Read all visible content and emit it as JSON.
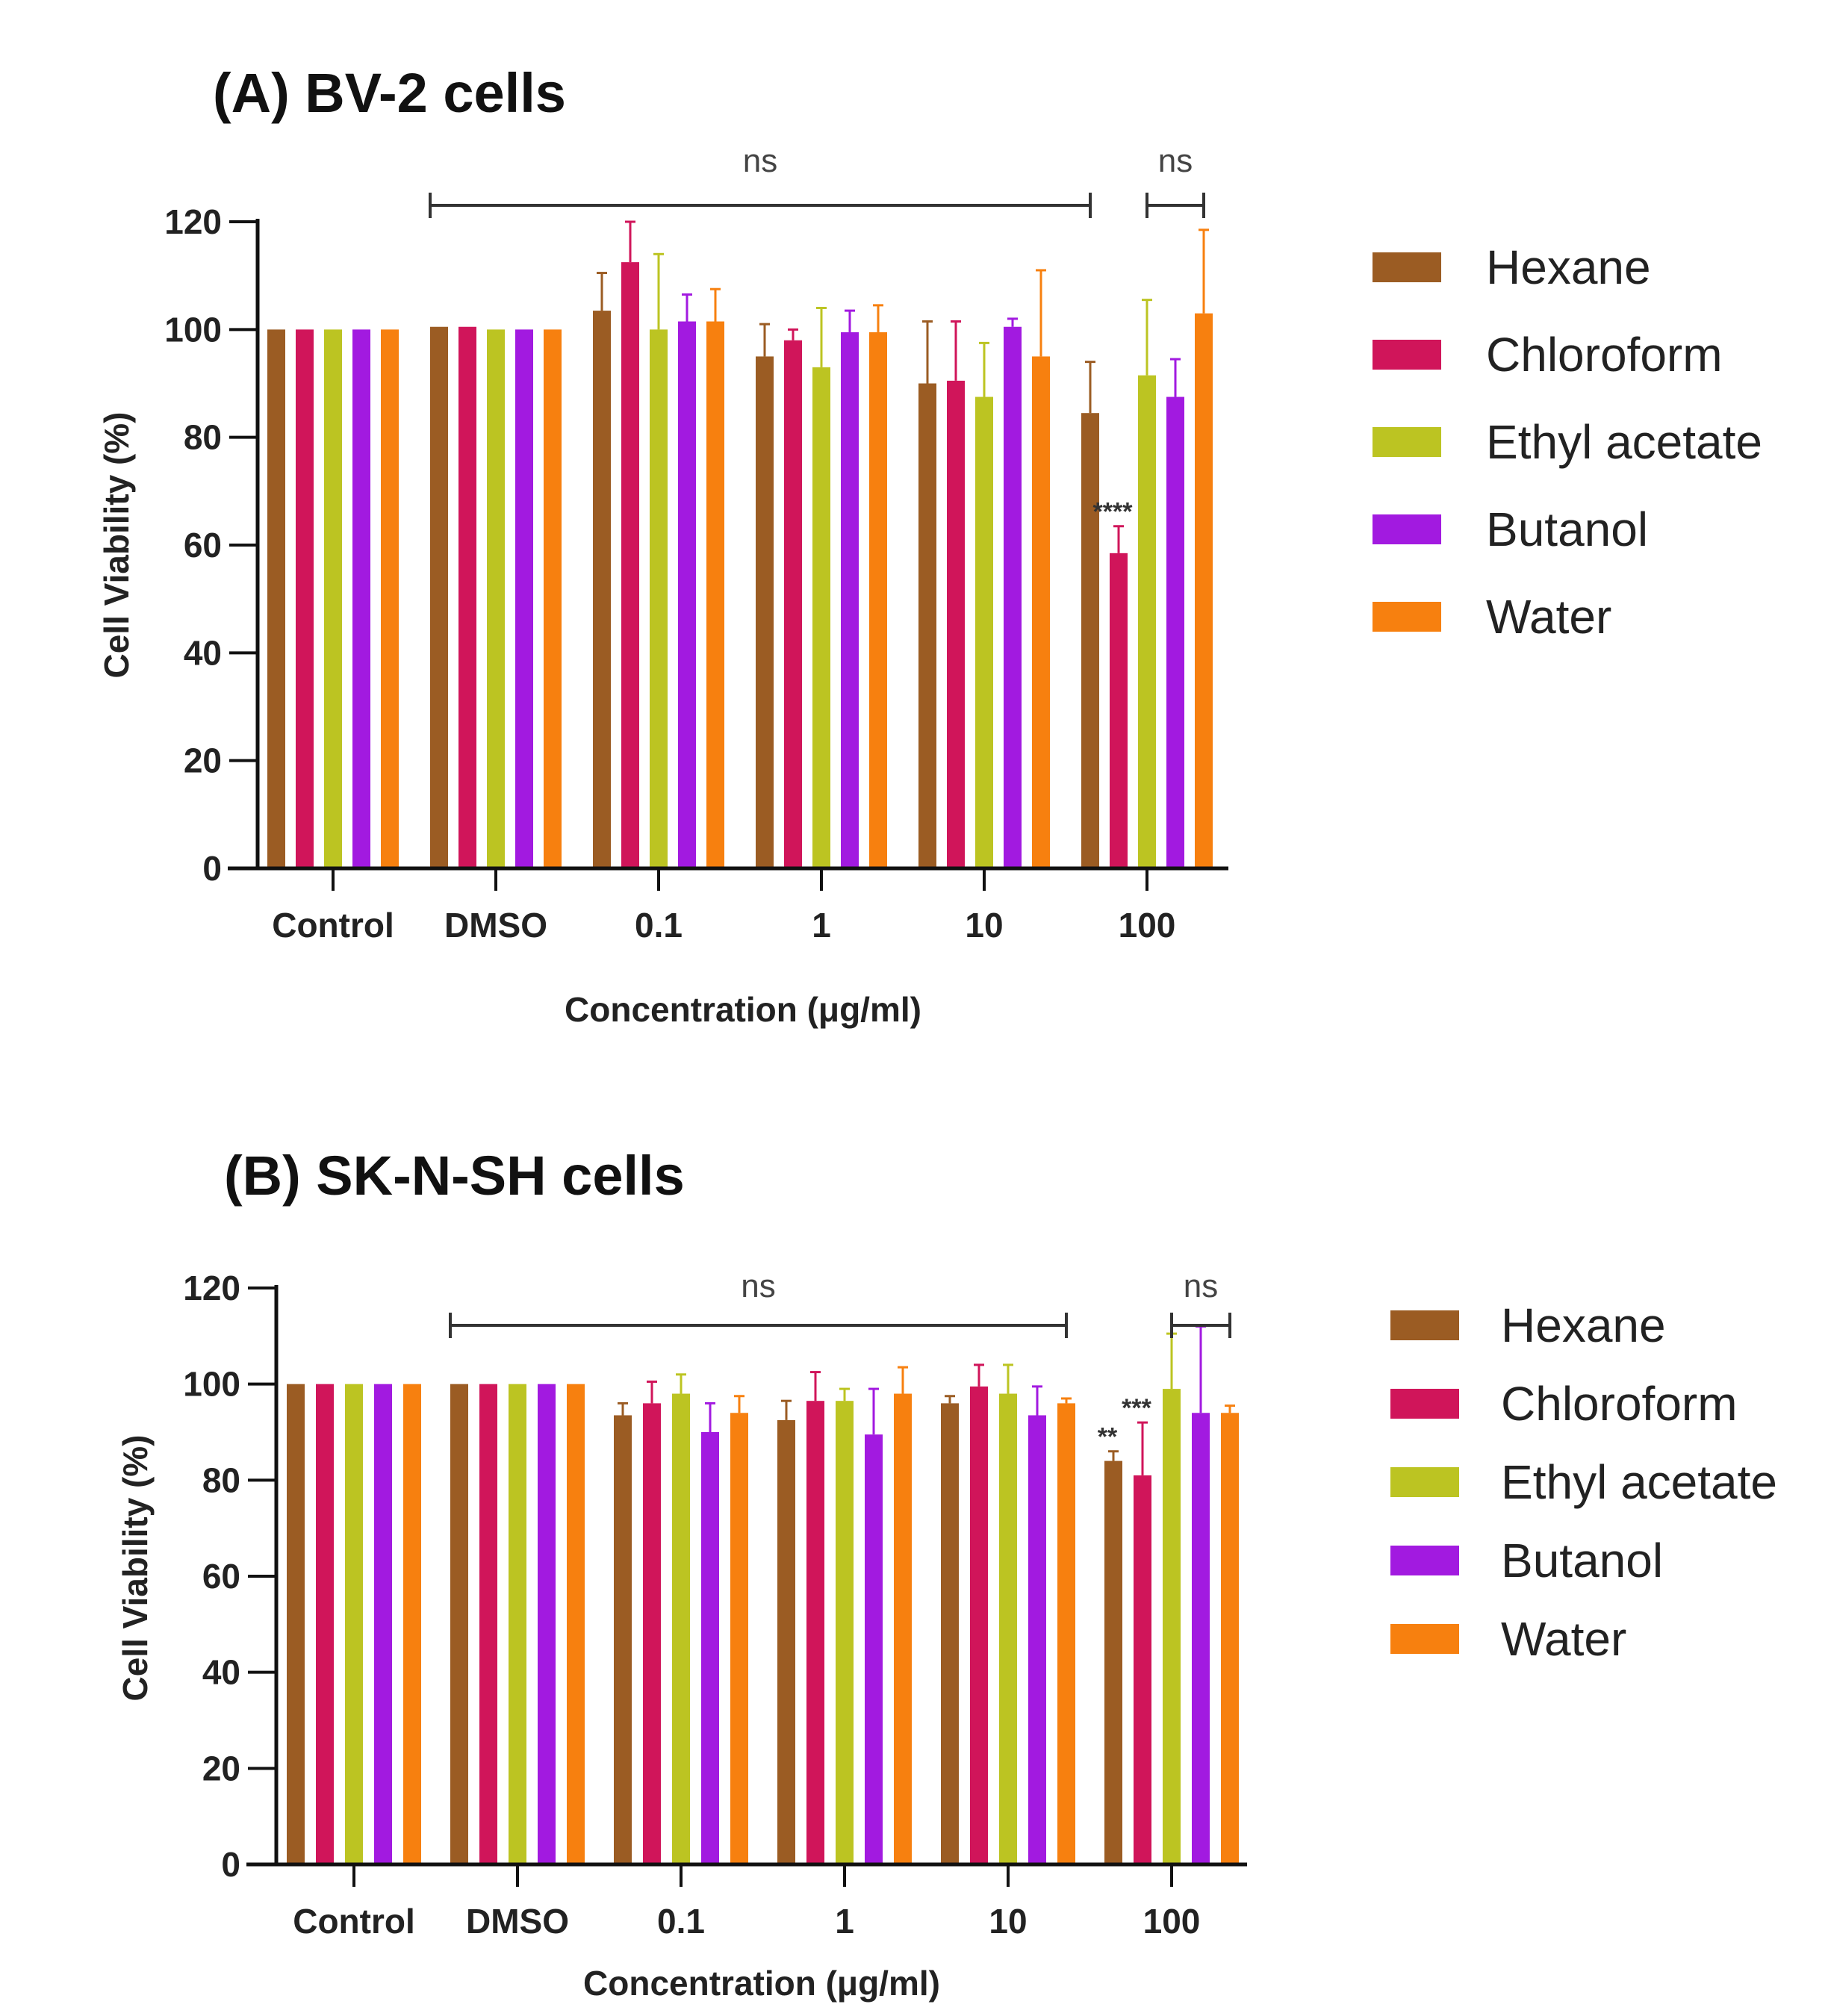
{
  "colors": {
    "Hexane": "#9b5c23",
    "Chloroform": "#d0155a",
    "Ethyl acetate": "#bcc422",
    "Butanol": "#a21ae0",
    "Water": "#f7800f",
    "axis": "#111111"
  },
  "chart_data": [
    {
      "type": "bar",
      "title": "(A) BV-2 cells",
      "xlabel": "Concentration (μg/ml)",
      "ylabel": "Cell Viability (%)",
      "ylim": [
        0,
        120
      ],
      "yticks": [
        0,
        20,
        40,
        60,
        80,
        100,
        120
      ],
      "categories": [
        "Control",
        "DMSO",
        "0.1",
        "1",
        "10",
        "100"
      ],
      "series": [
        {
          "name": "Hexane",
          "values": [
            100,
            100.5,
            103.5,
            95,
            90,
            84.5
          ],
          "errors": [
            0,
            0,
            7,
            6,
            11.5,
            9.5
          ]
        },
        {
          "name": "Chloroform",
          "values": [
            100,
            100.5,
            112.5,
            98,
            90.5,
            58.5
          ],
          "errors": [
            0,
            0,
            7.5,
            2,
            11,
            5
          ]
        },
        {
          "name": "Ethyl acetate",
          "values": [
            100,
            100,
            100,
            93,
            87.5,
            91.5
          ],
          "errors": [
            0,
            0,
            14,
            11,
            10,
            14
          ]
        },
        {
          "name": "Butanol",
          "values": [
            100,
            100,
            101.5,
            99.5,
            100.5,
            87.5
          ],
          "errors": [
            0,
            0,
            5,
            4,
            1.5,
            7
          ]
        },
        {
          "name": "Water",
          "values": [
            100,
            100,
            101.5,
            99.5,
            95,
            103
          ],
          "errors": [
            0,
            0,
            6,
            5,
            16,
            15.5
          ]
        }
      ],
      "annotations": [
        {
          "type": "bracket",
          "text": "ns",
          "from_category": "DMSO",
          "to_category": "100",
          "to_series": "Hexane"
        },
        {
          "type": "bracket",
          "text": "ns",
          "from_category": "100",
          "from_series": "Ethyl acetate",
          "to_category": "100",
          "to_series": "Water"
        },
        {
          "type": "star",
          "text": "****",
          "category": "100",
          "series": "Chloroform"
        }
      ]
    },
    {
      "type": "bar",
      "title": "(B) SK-N-SH cells",
      "xlabel": "Concentration (μg/ml)",
      "ylabel": "Cell Viability (%)",
      "ylim": [
        0,
        120
      ],
      "yticks": [
        0,
        20,
        40,
        60,
        80,
        100,
        120
      ],
      "categories": [
        "Control",
        "DMSO",
        "0.1",
        "1",
        "10",
        "100"
      ],
      "series": [
        {
          "name": "Hexane",
          "values": [
            100,
            100,
            93.5,
            92.5,
            96,
            84
          ],
          "errors": [
            0,
            0,
            2.5,
            4,
            1.5,
            2
          ]
        },
        {
          "name": "Chloroform",
          "values": [
            100,
            100,
            96,
            96.5,
            99.5,
            81
          ],
          "errors": [
            0,
            0,
            4.5,
            6,
            4.5,
            11
          ]
        },
        {
          "name": "Ethyl acetate",
          "values": [
            100,
            100,
            98,
            96.5,
            98,
            99
          ],
          "errors": [
            0,
            0,
            4,
            2.5,
            6,
            11.5
          ]
        },
        {
          "name": "Butanol",
          "values": [
            100,
            100,
            90,
            89.5,
            93.5,
            94
          ],
          "errors": [
            0,
            0,
            6,
            9.5,
            6,
            18
          ]
        },
        {
          "name": "Water",
          "values": [
            100,
            100,
            94,
            98,
            96,
            94
          ],
          "errors": [
            0,
            0,
            3.5,
            5.5,
            1,
            1.5
          ]
        }
      ],
      "annotations": [
        {
          "type": "bracket",
          "text": "ns",
          "from_category": "DMSO",
          "to_category": "10",
          "to_series": "Water"
        },
        {
          "type": "bracket",
          "text": "ns",
          "from_category": "100",
          "from_series": "Ethyl acetate",
          "to_category": "100",
          "to_series": "Water"
        },
        {
          "type": "star",
          "text": "**",
          "category": "100",
          "series": "Hexane"
        },
        {
          "type": "star",
          "text": "***",
          "category": "100",
          "series": "Chloroform"
        }
      ]
    }
  ]
}
